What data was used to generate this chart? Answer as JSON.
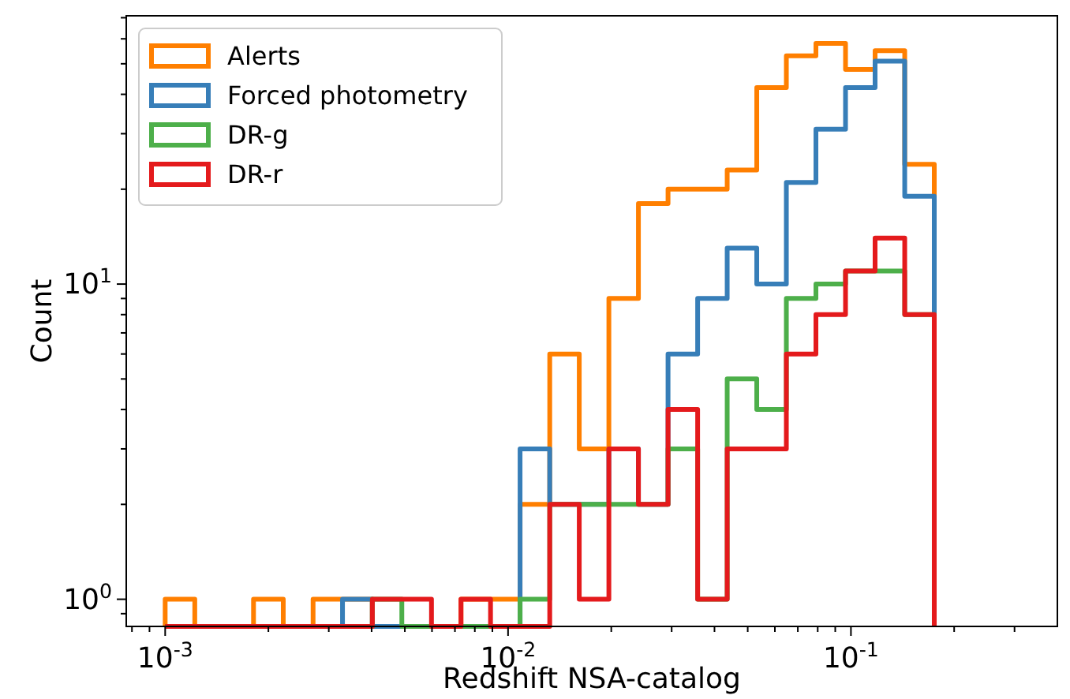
{
  "chart_data": {
    "type": "histogram",
    "xlabel": "Redshift NSA-catalog",
    "ylabel": "Count",
    "bins": [
      0.001,
      0.00122,
      0.00149,
      0.00181,
      0.00221,
      0.0027,
      0.00329,
      0.00402,
      0.0049,
      0.00598,
      0.00729,
      0.00889,
      0.01084,
      0.01323,
      0.01613,
      0.01968,
      0.024,
      0.02928,
      0.03572,
      0.04356,
      0.05313,
      0.06481,
      0.07905,
      0.09643,
      0.1176,
      0.1435,
      0.175
    ],
    "series": [
      {
        "name": "Alerts",
        "color": "#ff7f00",
        "values": [
          1,
          null,
          null,
          1,
          null,
          1,
          1,
          null,
          null,
          null,
          1,
          1,
          2,
          6,
          3,
          9,
          18,
          20,
          20,
          23,
          42,
          53,
          58,
          48,
          55,
          24
        ]
      },
      {
        "name": "Forced photometry",
        "color": "#377eb8",
        "values": [
          null,
          null,
          null,
          null,
          null,
          null,
          1,
          null,
          null,
          null,
          null,
          null,
          3,
          2,
          2,
          3,
          2,
          6,
          9,
          13,
          10,
          21,
          31,
          42,
          51,
          19
        ]
      },
      {
        "name": "DR-g",
        "color": "#4daf4a",
        "values": [
          null,
          null,
          null,
          null,
          null,
          null,
          null,
          1,
          null,
          null,
          null,
          null,
          1,
          2,
          2,
          2,
          2,
          3,
          1,
          5,
          4,
          9,
          10,
          11,
          11,
          8
        ]
      },
      {
        "name": "DR-r",
        "color": "#e41a1c",
        "values": [
          null,
          null,
          null,
          null,
          null,
          null,
          null,
          1,
          1,
          null,
          1,
          null,
          null,
          2,
          1,
          3,
          2,
          4,
          1,
          3,
          3,
          6,
          8,
          11,
          14,
          8
        ]
      }
    ],
    "log": "xy",
    "xlim": [
      0.00077,
      0.4
    ],
    "ylim": [
      0.82,
      71
    ],
    "xticks": [
      {
        "value": 0.0008,
        "label": null
      },
      {
        "value": 0.0009,
        "label": null
      },
      {
        "value": 0.001,
        "label": "10$^{-3}$"
      },
      {
        "value": 0.002,
        "label": null
      },
      {
        "value": 0.003,
        "label": null
      },
      {
        "value": 0.004,
        "label": null
      },
      {
        "value": 0.005,
        "label": null
      },
      {
        "value": 0.006,
        "label": null
      },
      {
        "value": 0.007,
        "label": null
      },
      {
        "value": 0.008,
        "label": null
      },
      {
        "value": 0.009,
        "label": null
      },
      {
        "value": 0.01,
        "label": "10$^{-2}$"
      },
      {
        "value": 0.02,
        "label": null
      },
      {
        "value": 0.03,
        "label": null
      },
      {
        "value": 0.04,
        "label": null
      },
      {
        "value": 0.05,
        "label": null
      },
      {
        "value": 0.06,
        "label": null
      },
      {
        "value": 0.07,
        "label": null
      },
      {
        "value": 0.08,
        "label": null
      },
      {
        "value": 0.09,
        "label": null
      },
      {
        "value": 0.1,
        "label": "10$^{-1}$"
      },
      {
        "value": 0.2,
        "label": null
      },
      {
        "value": 0.3,
        "label": null
      }
    ],
    "yticks": [
      {
        "value": 0.9,
        "label": null
      },
      {
        "value": 1,
        "label": "10$^{0}$"
      },
      {
        "value": 2,
        "label": null
      },
      {
        "value": 3,
        "label": null
      },
      {
        "value": 4,
        "label": null
      },
      {
        "value": 5,
        "label": null
      },
      {
        "value": 6,
        "label": null
      },
      {
        "value": 7,
        "label": null
      },
      {
        "value": 8,
        "label": null
      },
      {
        "value": 9,
        "label": null
      },
      {
        "value": 10,
        "label": "10$^{1}$"
      },
      {
        "value": 20,
        "label": null
      },
      {
        "value": 30,
        "label": null
      },
      {
        "value": 40,
        "label": null
      },
      {
        "value": 50,
        "label": null
      },
      {
        "value": 60,
        "label": null
      },
      {
        "value": 70,
        "label": null
      }
    ],
    "legend": "top left"
  }
}
